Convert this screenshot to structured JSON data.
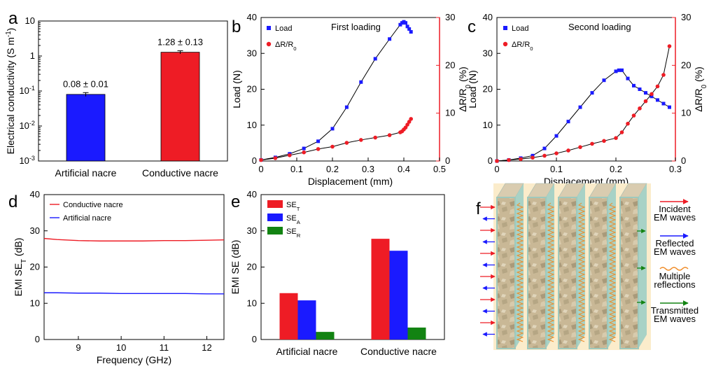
{
  "colors": {
    "red": "#ee1c25",
    "blue": "#1a1aff",
    "green": "#128312",
    "black": "#000000"
  },
  "chart_data": [
    {
      "panel": "a",
      "type": "bar",
      "ylabel": "Electrical conductivity (S m⁻¹)",
      "yscale": "log",
      "ylim": [
        0.001,
        10
      ],
      "yticks": [
        "10",
        "1",
        "10⁻¹",
        "10⁻²",
        "10⁻³"
      ],
      "categories": [
        "Artificial nacre",
        "Conductive nacre"
      ],
      "values": [
        0.08,
        1.28
      ],
      "errors": [
        0.01,
        0.13
      ],
      "data_labels": [
        "0.08 ± 0.01",
        "1.28 ± 0.13"
      ],
      "bar_colors": [
        "#1a1aff",
        "#ee1c25"
      ]
    },
    {
      "panel": "b",
      "type": "line",
      "annotation": "First loading",
      "xlabel": "Displacement (mm)",
      "ylabel": "Load (N)",
      "y2label": "ΔR/R₀ (%)",
      "xlim": [
        0,
        0.5
      ],
      "ylim": [
        0,
        40
      ],
      "y2lim": [
        0,
        30
      ],
      "xticks": [
        "0",
        "0.1",
        "0.2",
        "0.3",
        "0.4",
        "0.5"
      ],
      "yticks": [
        "0",
        "10",
        "20",
        "30",
        "40"
      ],
      "y2ticks": [
        "0",
        "10",
        "20",
        "30"
      ],
      "series": [
        {
          "name": "Load",
          "axis": "left",
          "marker": "square",
          "color": "#1a1aff",
          "x": [
            0,
            0.04,
            0.08,
            0.12,
            0.16,
            0.2,
            0.24,
            0.28,
            0.32,
            0.36,
            0.39,
            0.395,
            0.4,
            0.405,
            0.41,
            0.415,
            0.42
          ],
          "y": [
            0.3,
            1.0,
            2.0,
            3.5,
            5.5,
            9.0,
            15.0,
            22.0,
            28.5,
            34.0,
            38.0,
            38.5,
            38.8,
            38.5,
            37.5,
            36.8,
            36.0
          ]
        },
        {
          "name": "ΔR/R₀",
          "axis": "right",
          "marker": "circle",
          "color": "#ee1c25",
          "x": [
            0,
            0.04,
            0.08,
            0.12,
            0.16,
            0.2,
            0.24,
            0.28,
            0.32,
            0.36,
            0.39,
            0.395,
            0.4,
            0.405,
            0.41,
            0.415,
            0.42
          ],
          "y": [
            0.2,
            0.6,
            1.2,
            1.8,
            2.5,
            3.0,
            3.8,
            4.4,
            4.9,
            5.4,
            6.0,
            6.2,
            6.6,
            7.0,
            7.6,
            8.2,
            8.8
          ]
        }
      ]
    },
    {
      "panel": "c",
      "type": "line",
      "annotation": "Second loading",
      "xlabel": "Displacement (mm)",
      "ylabel": "Load (N)",
      "y2label": "ΔR/R₀ (%)",
      "xlim": [
        0,
        0.3
      ],
      "ylim": [
        0,
        40
      ],
      "y2lim": [
        0,
        30
      ],
      "xticks": [
        "0",
        "0.1",
        "0.2",
        "0.3"
      ],
      "yticks": [
        "0",
        "10",
        "20",
        "30",
        "40"
      ],
      "y2ticks": [
        "0",
        "10",
        "20",
        "30"
      ],
      "series": [
        {
          "name": "Load",
          "axis": "left",
          "marker": "square",
          "color": "#1a1aff",
          "x": [
            0,
            0.02,
            0.04,
            0.06,
            0.08,
            0.1,
            0.12,
            0.14,
            0.16,
            0.18,
            0.2,
            0.205,
            0.21,
            0.22,
            0.23,
            0.24,
            0.25,
            0.26,
            0.27,
            0.28,
            0.29
          ],
          "y": [
            0,
            0.3,
            0.8,
            1.5,
            3.5,
            7.0,
            11.0,
            15.0,
            19.0,
            22.5,
            25.0,
            25.3,
            25.3,
            23.0,
            21.0,
            20.0,
            19.0,
            18.0,
            17.0,
            16.0,
            15.0
          ]
        },
        {
          "name": "ΔR/R₀",
          "axis": "right",
          "marker": "circle",
          "color": "#ee1c25",
          "x": [
            0,
            0.02,
            0.04,
            0.06,
            0.08,
            0.1,
            0.12,
            0.14,
            0.16,
            0.18,
            0.2,
            0.21,
            0.22,
            0.23,
            0.24,
            0.25,
            0.26,
            0.27,
            0.28,
            0.29
          ],
          "y": [
            0,
            0.2,
            0.4,
            0.7,
            1.1,
            1.6,
            2.2,
            2.9,
            3.6,
            4.2,
            4.8,
            6.0,
            7.8,
            9.5,
            11.0,
            12.5,
            14.0,
            15.6,
            18.0,
            24.0
          ]
        }
      ]
    },
    {
      "panel": "d",
      "type": "line",
      "xlabel": "Frequency (GHz)",
      "ylabel": "EMI SE_T (dB)",
      "xlim": [
        8.2,
        12.4
      ],
      "ylim": [
        0,
        40
      ],
      "xticks": [
        "9",
        "10",
        "11",
        "12"
      ],
      "yticks": [
        "0",
        "10",
        "20",
        "30",
        "40"
      ],
      "series": [
        {
          "name": "Conductive nacre",
          "color": "#ee1c25",
          "x": [
            8.2,
            8.5,
            9,
            9.5,
            10,
            10.5,
            11,
            11.5,
            12,
            12.4
          ],
          "y": [
            27.9,
            27.6,
            27.3,
            27.2,
            27.2,
            27.2,
            27.3,
            27.3,
            27.4,
            27.5
          ]
        },
        {
          "name": "Artificial nacre",
          "color": "#1a1aff",
          "x": [
            8.2,
            8.5,
            9,
            9.5,
            10,
            10.5,
            11,
            11.5,
            12,
            12.4
          ],
          "y": [
            12.9,
            12.9,
            12.8,
            12.8,
            12.7,
            12.7,
            12.7,
            12.7,
            12.6,
            12.6
          ]
        }
      ]
    },
    {
      "panel": "e",
      "type": "bar",
      "ylabel": "EMI SE (dB)",
      "ylim": [
        0,
        40
      ],
      "yticks": [
        "0",
        "10",
        "20",
        "30",
        "40"
      ],
      "categories": [
        "Artificial nacre",
        "Conductive nacre"
      ],
      "series": [
        {
          "name": "SE_T",
          "color": "#ee1c25",
          "values": [
            12.8,
            27.8
          ]
        },
        {
          "name": "SE_A",
          "color": "#1a1aff",
          "values": [
            10.8,
            24.5
          ]
        },
        {
          "name": "SE_R",
          "color": "#128312",
          "values": [
            2.1,
            3.3
          ]
        }
      ]
    }
  ],
  "panels": {
    "a": "a",
    "b": "b",
    "c": "c",
    "d": "d",
    "e": "e",
    "f": "f"
  },
  "schematic_f": {
    "legend": [
      {
        "line1": "Incident",
        "line2": "EM waves",
        "color": "#ee1c25",
        "style": "arrow"
      },
      {
        "line1": "Reflected",
        "line2": "EM waves",
        "color": "#1a1aff",
        "style": "arrow"
      },
      {
        "line1": "Multiple",
        "line2": "reflections",
        "color": "#f08c28",
        "style": "wavy"
      },
      {
        "line1": "Transmitted",
        "line2": "EM waves",
        "color": "#128312",
        "style": "arrow"
      }
    ]
  }
}
